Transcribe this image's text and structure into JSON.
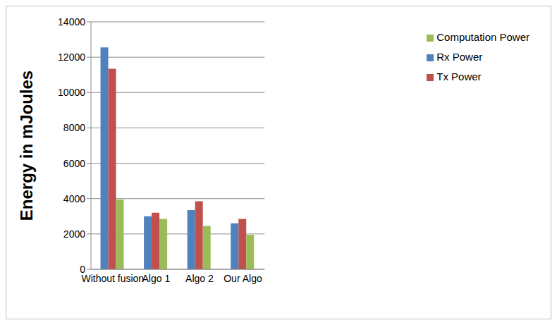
{
  "chart_data": {
    "type": "bar",
    "y_label": "Energy in mJoules",
    "categories": [
      "Without fusion",
      "Algo 1",
      "Algo 2",
      "Our Algo"
    ],
    "series": [
      {
        "name": "Rx Power",
        "color": "#4f81bd",
        "values": [
          12550,
          3000,
          3350,
          2600
        ]
      },
      {
        "name": "Tx Power",
        "color": "#c0504d",
        "values": [
          11350,
          3200,
          3850,
          2850
        ]
      },
      {
        "name": "Computation Power",
        "color": "#9bbb59",
        "values": [
          3950,
          2850,
          2450,
          1950
        ]
      }
    ],
    "ylim": [
      0,
      14000
    ],
    "yticks": [
      0,
      2000,
      4000,
      6000,
      8000,
      10000,
      12000,
      14000
    ],
    "grid": true,
    "legend": "right"
  }
}
